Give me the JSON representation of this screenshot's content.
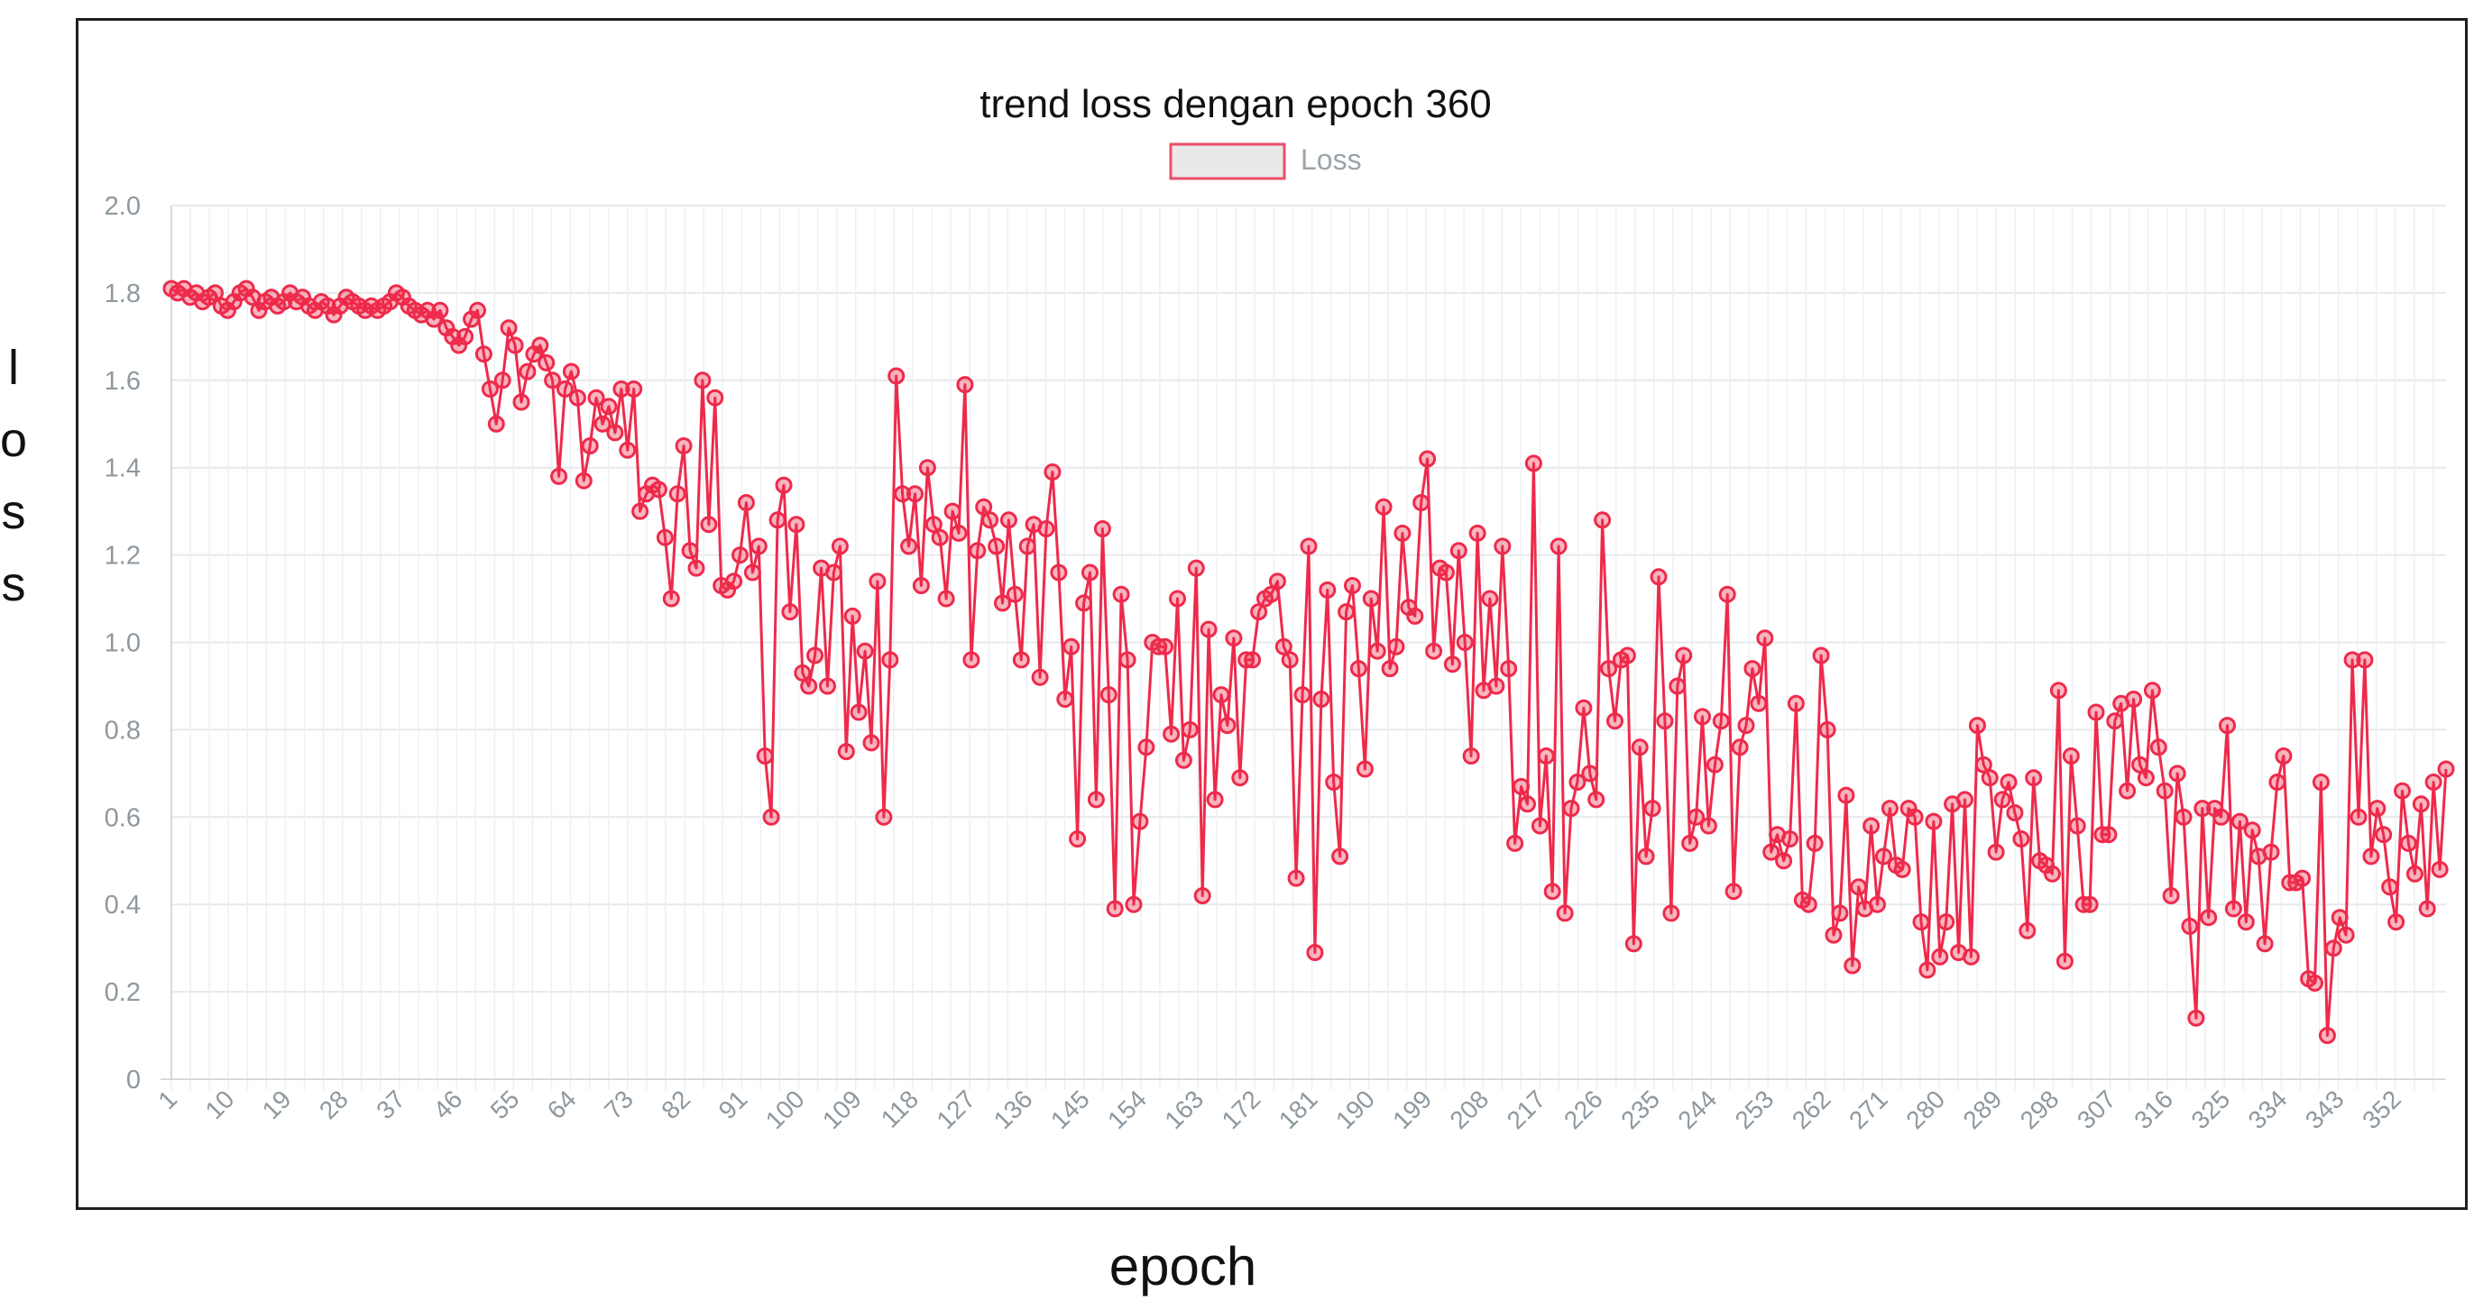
{
  "chart_data": {
    "type": "line",
    "title": "trend loss dengan epoch 360",
    "xlabel": "epoch",
    "ylabel": "loss",
    "legend": {
      "position": "top",
      "entries": [
        "Loss"
      ]
    },
    "grid": true,
    "ylim": [
      0,
      2.0
    ],
    "yticks": [
      "0",
      "0.2",
      "0.4",
      "0.6",
      "0.8",
      "1.0",
      "1.2",
      "1.4",
      "1.6",
      "1.8",
      "2.0"
    ],
    "xticks": [
      "1",
      "10",
      "19",
      "28",
      "37",
      "46",
      "55",
      "64",
      "73",
      "82",
      "91",
      "100",
      "109",
      "118",
      "127",
      "136",
      "145",
      "154",
      "163",
      "172",
      "181",
      "190",
      "199",
      "208",
      "217",
      "226",
      "235",
      "244",
      "253",
      "262",
      "271",
      "280",
      "289",
      "298",
      "307",
      "316",
      "325",
      "334",
      "343",
      "352"
    ],
    "x_start": 1,
    "x_end": 360,
    "series": [
      {
        "name": "Loss",
        "color": "#ee2a4b",
        "values": [
          1.81,
          1.8,
          1.81,
          1.79,
          1.8,
          1.78,
          1.79,
          1.8,
          1.77,
          1.76,
          1.78,
          1.8,
          1.81,
          1.79,
          1.76,
          1.78,
          1.79,
          1.77,
          1.78,
          1.8,
          1.78,
          1.79,
          1.77,
          1.76,
          1.78,
          1.77,
          1.75,
          1.77,
          1.79,
          1.78,
          1.77,
          1.76,
          1.77,
          1.76,
          1.77,
          1.78,
          1.8,
          1.79,
          1.77,
          1.76,
          1.75,
          1.76,
          1.74,
          1.76,
          1.72,
          1.7,
          1.68,
          1.7,
          1.74,
          1.76,
          1.66,
          1.58,
          1.5,
          1.6,
          1.72,
          1.68,
          1.55,
          1.62,
          1.66,
          1.68,
          1.64,
          1.6,
          1.38,
          1.58,
          1.62,
          1.56,
          1.37,
          1.45,
          1.56,
          1.5,
          1.54,
          1.48,
          1.58,
          1.44,
          1.58,
          1.3,
          1.34,
          1.36,
          1.35,
          1.24,
          1.1,
          1.34,
          1.45,
          1.21,
          1.17,
          1.6,
          1.27,
          1.56,
          1.13,
          1.12,
          1.14,
          1.2,
          1.32,
          1.16,
          1.22,
          0.74,
          0.6,
          1.28,
          1.36,
          1.07,
          1.27,
          0.93,
          0.9,
          0.97,
          1.17,
          0.9,
          1.16,
          1.22,
          0.75,
          1.06,
          0.84,
          0.98,
          0.77,
          1.14,
          0.6,
          0.96,
          1.61,
          1.34,
          1.22,
          1.34,
          1.13,
          1.4,
          1.27,
          1.24,
          1.1,
          1.3,
          1.25,
          1.59,
          0.96,
          1.21,
          1.31,
          1.28,
          1.22,
          1.09,
          1.28,
          1.11,
          0.96,
          1.22,
          1.27,
          0.92,
          1.26,
          1.39,
          1.16,
          0.87,
          0.99,
          0.55,
          1.09,
          1.16,
          0.64,
          1.26,
          0.88,
          0.39,
          1.11,
          0.96,
          0.4,
          0.59,
          0.76,
          1.0,
          0.99,
          0.99,
          0.79,
          1.1,
          0.73,
          0.8,
          1.17,
          0.42,
          1.03,
          0.64,
          0.88,
          0.81,
          1.01,
          0.69,
          0.96,
          0.96,
          1.07,
          1.1,
          1.11,
          1.14,
          0.99,
          0.96,
          0.46,
          0.88,
          1.22,
          0.29,
          0.87,
          1.12,
          0.68,
          0.51,
          1.07,
          1.13,
          0.94,
          0.71,
          1.1,
          0.98,
          1.31,
          0.94,
          0.99,
          1.25,
          1.08,
          1.06,
          1.32,
          1.42,
          0.98,
          1.17,
          1.16,
          0.95,
          1.21,
          1.0,
          0.74,
          1.25,
          0.89,
          1.1,
          0.9,
          1.22,
          0.94,
          0.54,
          0.67,
          0.63,
          1.41,
          0.58,
          0.74,
          0.43,
          1.22,
          0.38,
          0.62,
          0.68,
          0.85,
          0.7,
          0.64,
          1.28,
          0.94,
          0.82,
          0.96,
          0.97,
          0.31,
          0.76,
          0.51,
          0.62,
          1.15,
          0.82,
          0.38,
          0.9,
          0.97,
          0.54,
          0.6,
          0.83,
          0.58,
          0.72,
          0.82,
          1.11,
          0.43,
          0.76,
          0.81,
          0.94,
          0.86,
          1.01,
          0.52,
          0.56,
          0.5,
          0.55,
          0.86,
          0.41,
          0.4,
          0.54,
          0.97,
          0.8,
          0.33,
          0.38,
          0.65,
          0.26,
          0.44,
          0.39,
          0.58,
          0.4,
          0.51,
          0.62,
          0.49,
          0.48,
          0.62,
          0.6,
          0.36,
          0.25,
          0.59,
          0.28,
          0.36,
          0.63,
          0.29,
          0.64,
          0.28,
          0.81,
          0.72,
          0.69,
          0.52,
          0.64,
          0.68,
          0.61,
          0.55,
          0.34,
          0.69,
          0.5,
          0.49,
          0.47,
          0.89,
          0.27,
          0.74,
          0.58,
          0.4,
          0.4,
          0.84,
          0.56,
          0.56,
          0.82,
          0.86,
          0.66,
          0.87,
          0.72,
          0.69,
          0.89,
          0.76,
          0.66,
          0.42,
          0.7,
          0.6,
          0.35,
          0.14,
          0.62,
          0.37,
          0.62,
          0.6,
          0.81,
          0.39,
          0.59,
          0.36,
          0.57,
          0.51,
          0.31,
          0.52,
          0.68,
          0.74,
          0.45,
          0.45,
          0.46,
          0.23,
          0.22,
          0.68,
          0.1,
          0.3,
          0.37,
          0.33,
          0.96,
          0.6,
          0.96,
          0.51,
          0.62,
          0.56,
          0.44,
          0.36,
          0.66,
          0.54,
          0.47,
          0.63,
          0.39,
          0.68,
          0.48,
          0.71
        ]
      }
    ]
  }
}
